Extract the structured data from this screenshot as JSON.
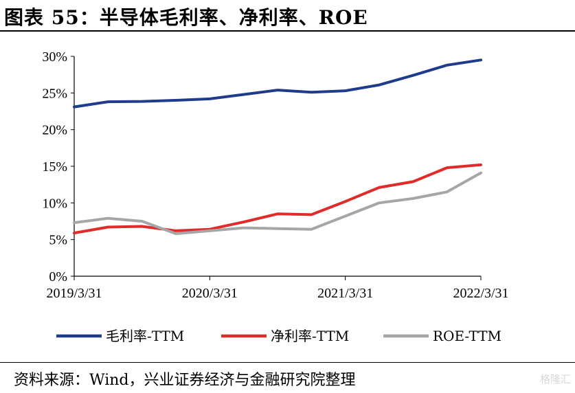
{
  "header": {
    "title": "图表 55：半导体毛利率、净利率、ROE"
  },
  "footer": {
    "source": "资料来源：Wind，兴业证券经济与金融研究院整理",
    "watermark": "格隆汇"
  },
  "chart_data": {
    "type": "line",
    "title": "图表 55：半导体毛利率、净利率、ROE",
    "xlabel": "",
    "ylabel": "",
    "x": [
      "2019/3/31",
      "2019/6/30",
      "2019/9/30",
      "2019/12/31",
      "2020/3/31",
      "2020/6/30",
      "2020/9/30",
      "2020/12/31",
      "2021/3/31",
      "2021/6/30",
      "2021/9/30",
      "2021/12/31",
      "2022/3/31"
    ],
    "x_tick_labels": [
      "2019/3/31",
      "2020/3/31",
      "2021/3/31",
      "2022/3/31"
    ],
    "y_tick_labels": [
      "0%",
      "5%",
      "10%",
      "15%",
      "20%",
      "25%",
      "30%"
    ],
    "ylim": [
      0,
      30
    ],
    "y_unit": "%",
    "grid": false,
    "legend_position": "bottom",
    "series": [
      {
        "name": "毛利率-TTM",
        "color": "#1f3c8c",
        "values": [
          23.1,
          23.8,
          23.85,
          24.0,
          24.2,
          24.8,
          25.4,
          25.1,
          25.3,
          26.1,
          27.4,
          28.8,
          29.5
        ]
      },
      {
        "name": "净利率-TTM",
        "color": "#e02b2b",
        "values": [
          5.9,
          6.7,
          6.8,
          6.2,
          6.4,
          7.4,
          8.5,
          8.4,
          10.2,
          12.1,
          12.9,
          14.8,
          15.2
        ]
      },
      {
        "name": "ROE-TTM",
        "color": "#a6a6a6",
        "values": [
          7.3,
          7.9,
          7.5,
          5.8,
          6.2,
          6.6,
          6.5,
          6.4,
          8.2,
          10.0,
          10.6,
          11.5,
          14.1
        ]
      }
    ]
  }
}
